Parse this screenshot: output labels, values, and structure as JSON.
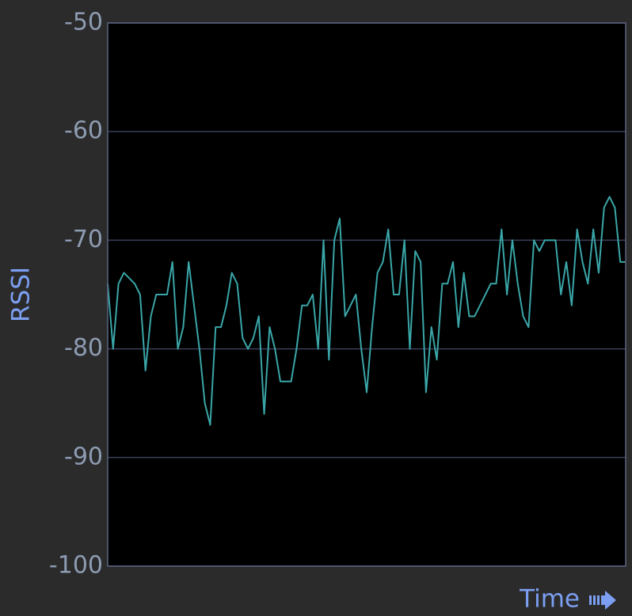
{
  "chart_data": {
    "type": "line",
    "ylabel": "RSSI",
    "xlabel": "Time",
    "ylim": [
      -100,
      -50
    ],
    "yticks": [
      -100,
      -90,
      -80,
      -70,
      -60,
      -50
    ],
    "grid": true,
    "series": [
      {
        "color": "#3aa6a8",
        "values": [
          -74,
          -80,
          -74,
          -73,
          -73.5,
          -74,
          -75,
          -82,
          -77,
          -75,
          -75,
          -75,
          -72,
          -80,
          -78,
          -72,
          -76,
          -80,
          -85,
          -87,
          -78,
          -78,
          -76,
          -73,
          -74,
          -79,
          -80,
          -79,
          -77,
          -86,
          -78,
          -80,
          -83,
          -83,
          -83,
          -80,
          -76,
          -76,
          -75,
          -80,
          -70,
          -81,
          -70,
          -68,
          -77,
          -76,
          -75,
          -80,
          -84,
          -78,
          -73,
          -72,
          -69,
          -75,
          -75,
          -70,
          -80,
          -71,
          -72,
          -84,
          -78,
          -81,
          -74,
          -74,
          -72,
          -78,
          -73,
          -77,
          -77,
          -76,
          -75,
          -74,
          -74,
          -69,
          -75,
          -70,
          -74,
          -77,
          -78,
          -70,
          -71,
          -70,
          -70,
          -70,
          -75,
          -72,
          -76,
          -69,
          -72,
          -74,
          -69,
          -73,
          -67,
          -66,
          -67,
          -72,
          -72
        ]
      }
    ]
  }
}
